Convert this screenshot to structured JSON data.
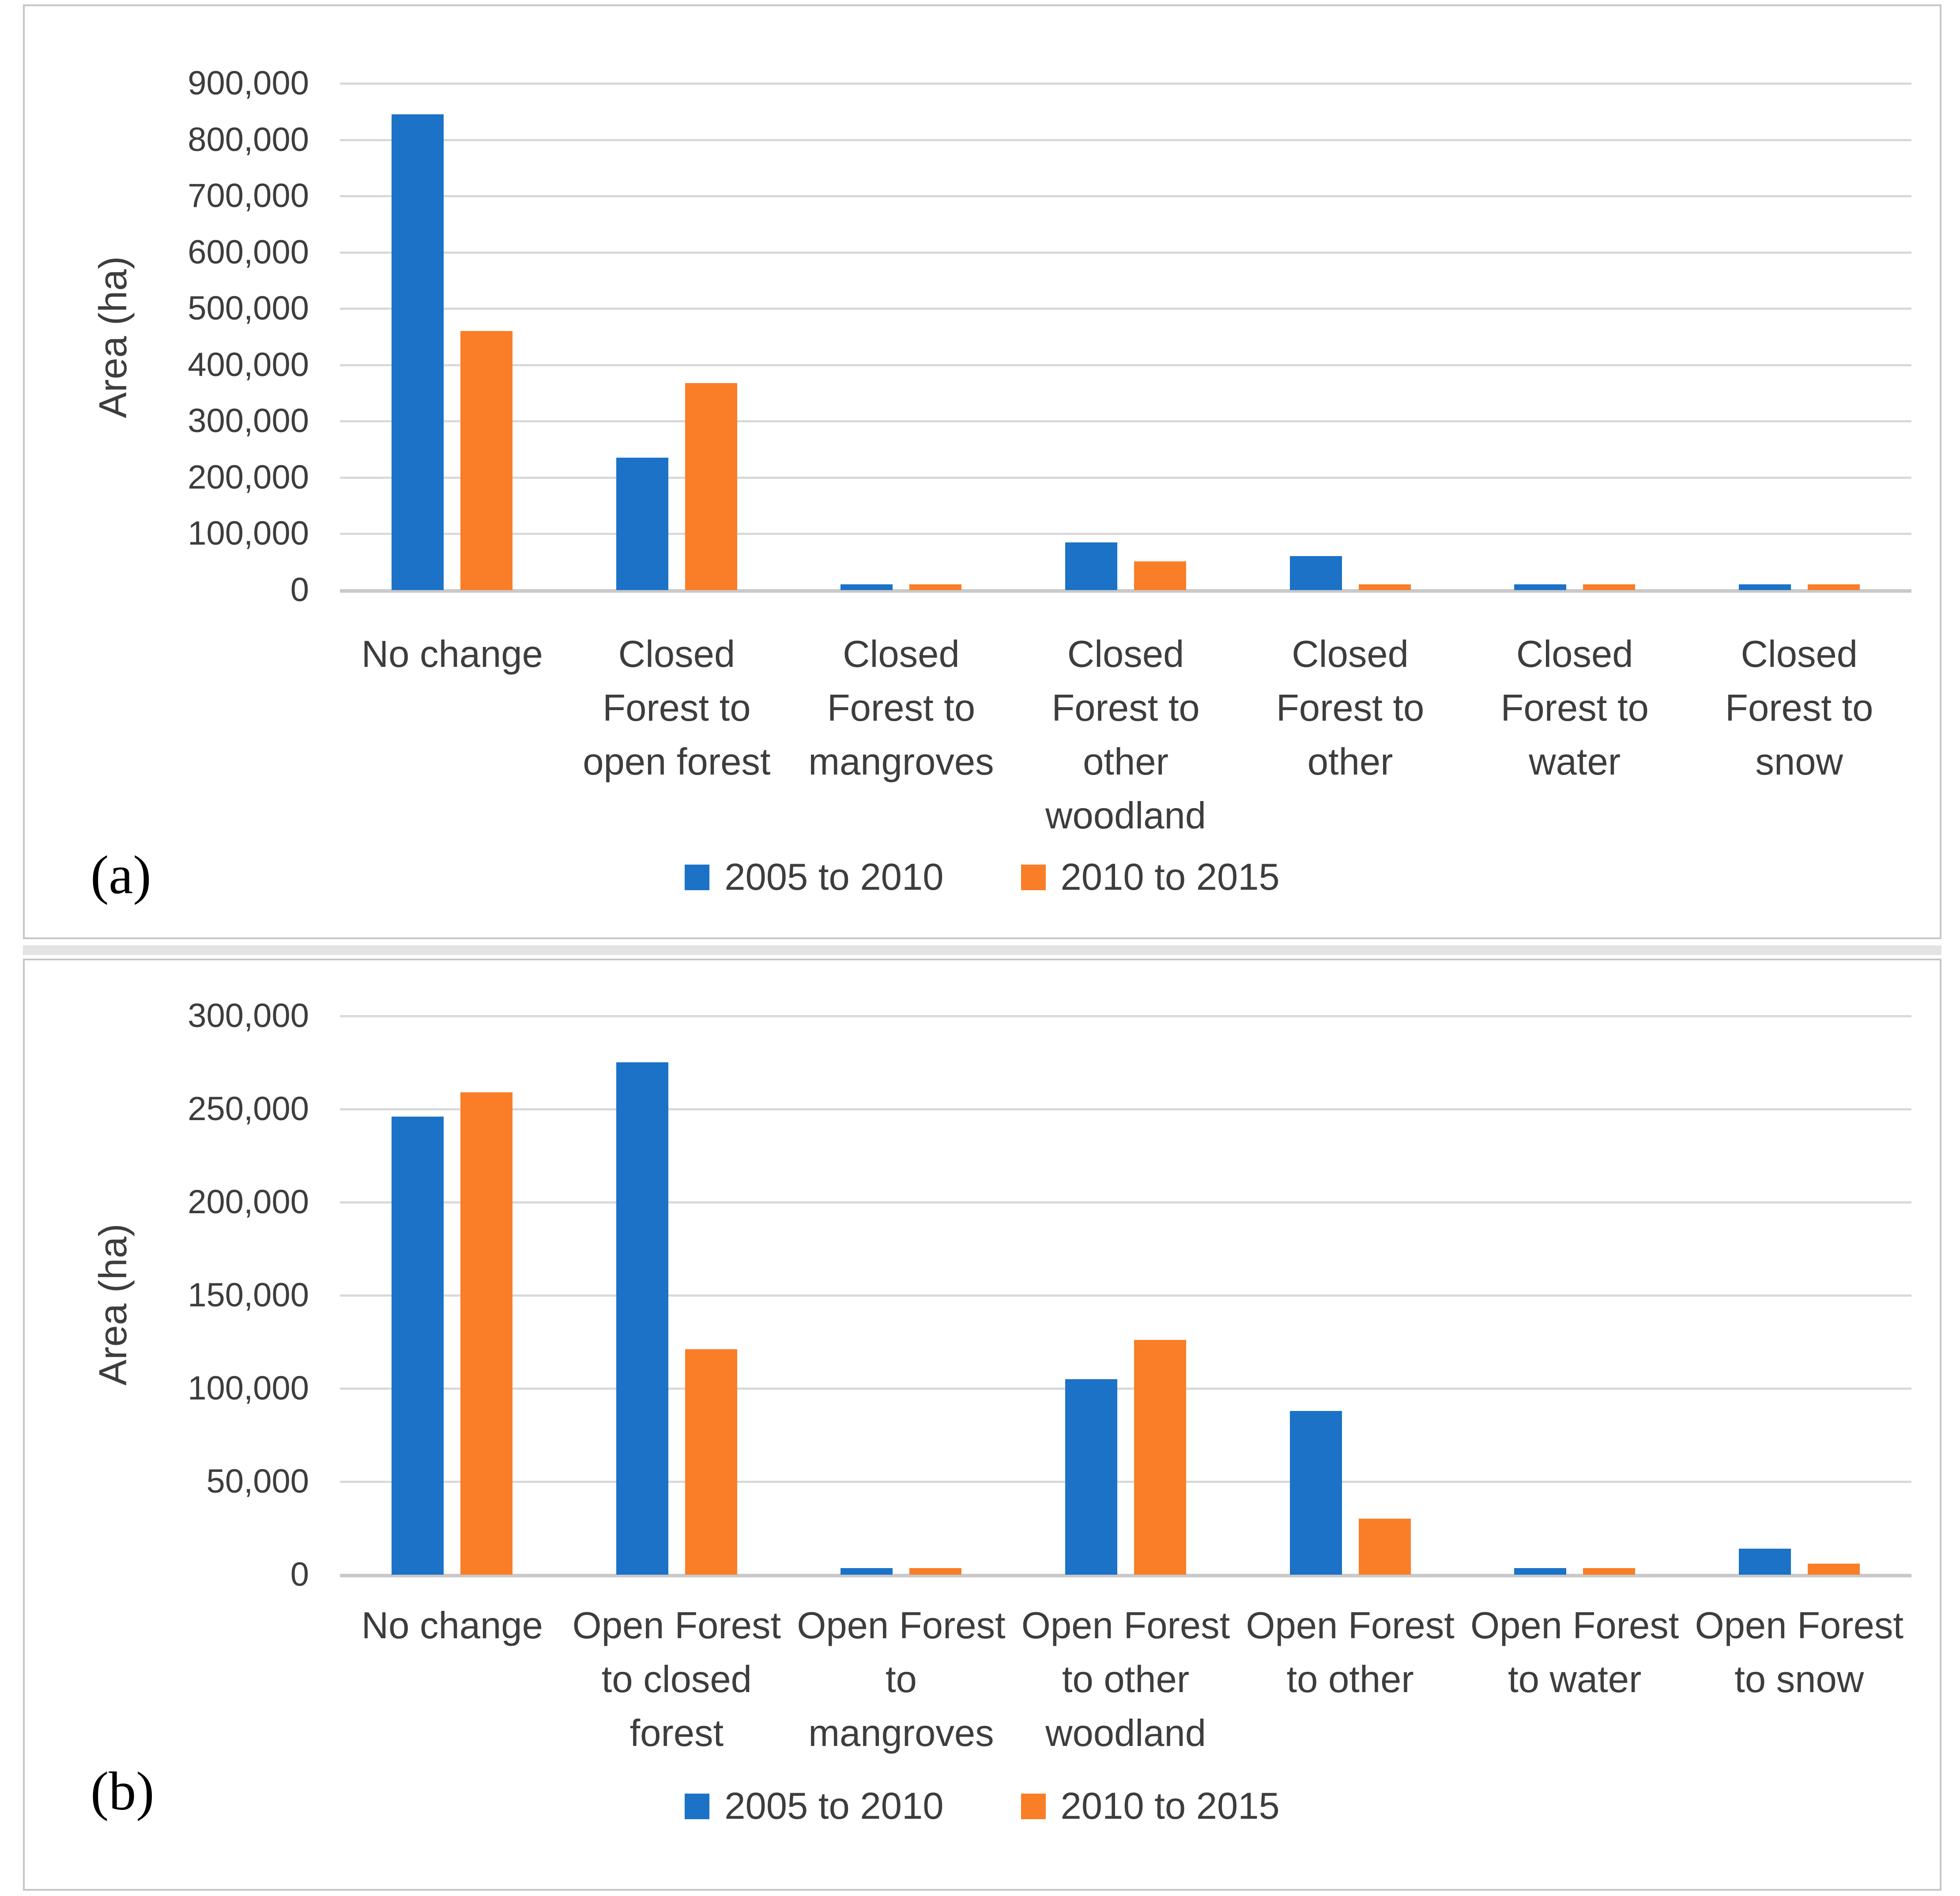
{
  "figure": {
    "panel_a_letter": "(a)",
    "panel_b_letter": "(b)"
  },
  "colors": {
    "series_2005_2010": "#1b72c7",
    "series_2010_2015": "#f97e27",
    "gridline": "#d9d9d9",
    "axis_text": "#3d3d3d"
  },
  "chart_data": [
    {
      "type": "bar",
      "panel": "a",
      "title": "",
      "xlabel": "",
      "ylabel": "Area (ha)",
      "ylim": [
        0,
        900000
      ],
      "y_tick_step": 100000,
      "y_ticks": [
        "900,000",
        "800,000",
        "700,000",
        "600,000",
        "500,000",
        "400,000",
        "300,000",
        "200,000",
        "100,000",
        "0"
      ],
      "grid": true,
      "legend_position": "bottom",
      "categories": [
        "No change",
        "Closed\nForest to\nopen forest",
        "Closed\nForest to\nmangroves",
        "Closed\nForest to\nother\nwoodland",
        "Closed\nForest to\nother",
        "Closed\nForest to\nwater",
        "Closed\nForest to\nsnow"
      ],
      "series": [
        {
          "name": "2005 to 2010",
          "color": "#1b72c7",
          "values": [
            845000,
            235000,
            10000,
            85000,
            60000,
            10000,
            10000
          ]
        },
        {
          "name": "2010 to 2015",
          "color": "#f97e27",
          "values": [
            460000,
            368000,
            10000,
            51000,
            10000,
            10000,
            10000
          ]
        }
      ]
    },
    {
      "type": "bar",
      "panel": "b",
      "title": "",
      "xlabel": "",
      "ylabel": "Area (ha)",
      "ylim": [
        0,
        300000
      ],
      "y_tick_step": 50000,
      "y_ticks": [
        "300,000",
        "250,000",
        "200,000",
        "150,000",
        "100,000",
        "50,000",
        "0"
      ],
      "grid": true,
      "legend_position": "bottom",
      "categories": [
        "No change",
        "Open Forest\nto closed\nforest",
        "Open Forest\nto\nmangroves",
        "Open Forest\nto other\nwoodland",
        "Open Forest\nto other",
        "Open Forest\nto water",
        "Open Forest\nto snow"
      ],
      "series": [
        {
          "name": "2005 to 2010",
          "color": "#1b72c7",
          "values": [
            246000,
            275000,
            3500,
            105000,
            88000,
            3500,
            14000
          ]
        },
        {
          "name": "2010 to 2015",
          "color": "#f97e27",
          "values": [
            259000,
            121000,
            3500,
            126000,
            30000,
            3500,
            6000
          ]
        }
      ]
    }
  ]
}
